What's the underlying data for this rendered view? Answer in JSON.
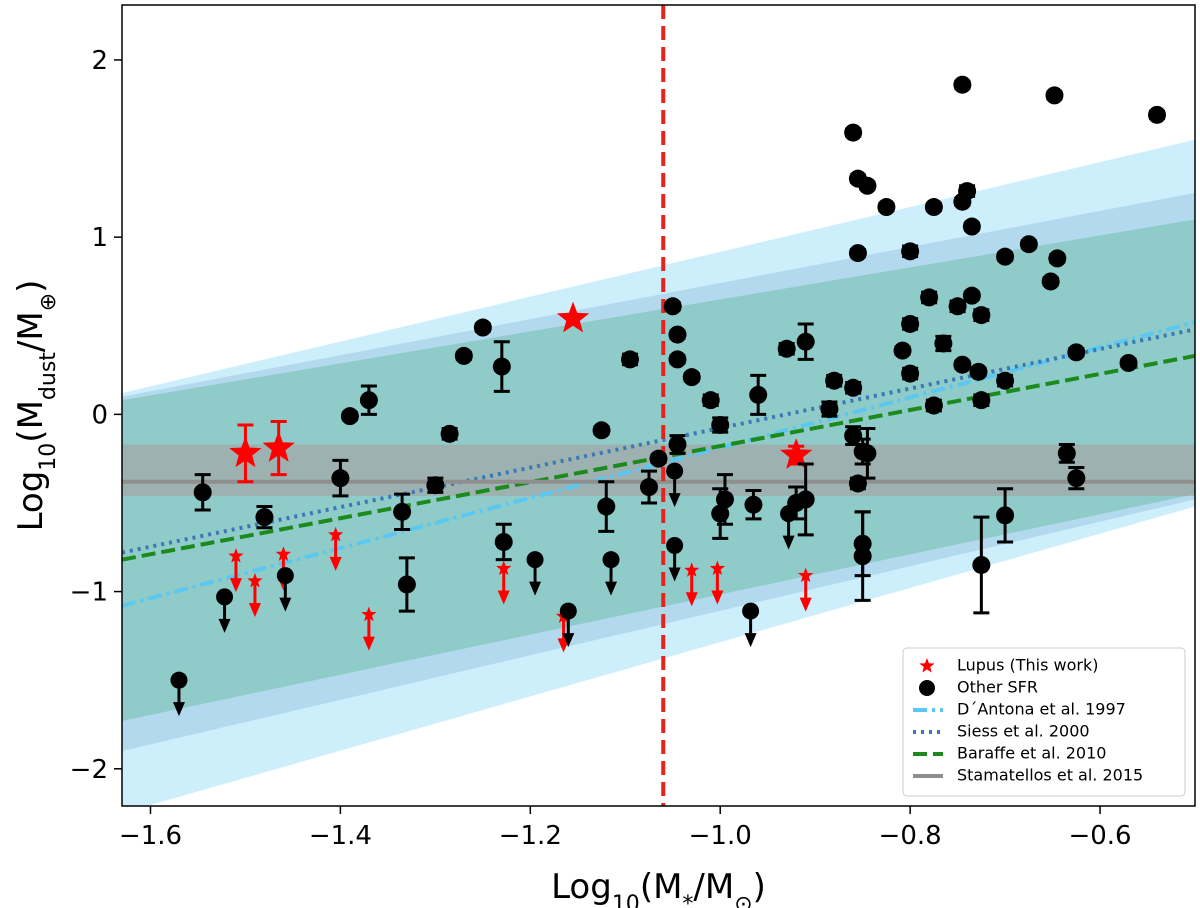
{
  "chart_data": {
    "type": "scatter",
    "xlim": [
      -1.63,
      -0.5
    ],
    "ylim": [
      -2.21,
      2.31
    ],
    "xticks": [
      {
        "value": -1.6,
        "label": "−1.6"
      },
      {
        "value": -1.4,
        "label": "−1.4"
      },
      {
        "value": -1.2,
        "label": "−1.2"
      },
      {
        "value": -1.0,
        "label": "−1.0"
      },
      {
        "value": -0.8,
        "label": "−0.8"
      },
      {
        "value": -0.6,
        "label": "−0.6"
      }
    ],
    "yticks": [
      {
        "value": -2,
        "label": "−2"
      },
      {
        "value": -1,
        "label": "−1"
      },
      0,
      1,
      2
    ],
    "xlabel": [
      {
        "text": "Log"
      },
      {
        "text": "10",
        "sub": true
      },
      {
        "text": "(M"
      },
      {
        "text": "*",
        "sub": true
      },
      {
        "text": "/M"
      },
      {
        "text": "⊙",
        "sub": true
      },
      {
        "text": ")"
      }
    ],
    "ylabel": [
      {
        "text": "Log"
      },
      {
        "text": "10",
        "sub": true
      },
      {
        "text": "(M"
      },
      {
        "text": "dust",
        "sub": true
      },
      {
        "text": "/M"
      },
      {
        "text": "⊕",
        "sub": true
      },
      {
        "text": ")"
      }
    ],
    "legend": "lower right",
    "vline": {
      "value": -1.06,
      "color": "#e8221c"
    },
    "bands": [
      {
        "color": "#cdeffb",
        "opacity": 1,
        "x": [
          -1.63,
          -0.5
        ],
        "lower": [
          -2.25,
          -0.52
        ],
        "upper": [
          0.12,
          1.55
        ]
      },
      {
        "color": "#b3d9ee",
        "opacity": 1,
        "x": [
          -1.63,
          -0.5
        ],
        "lower": [
          -1.9,
          -0.48
        ],
        "upper": [
          0.1,
          1.25
        ]
      },
      {
        "color": "#8fcbc8",
        "opacity": 1,
        "x": [
          -1.63,
          -0.5
        ],
        "lower": [
          -1.73,
          -0.45
        ],
        "upper": [
          0.08,
          1.1
        ]
      },
      {
        "color": "#a3a3a3",
        "opacity": 0.65,
        "x": [
          -1.63,
          -0.5
        ],
        "lower": [
          -0.46,
          -0.46
        ],
        "upper": [
          -0.17,
          -0.17
        ]
      }
    ],
    "series": [
      {
        "name": "Lupus (This work)",
        "color": "#ff0000",
        "marker": "star",
        "x": [
          -1.5,
          -1.465,
          -1.155,
          -0.92,
          -1.51,
          -1.49,
          -1.46,
          -1.405,
          -1.37,
          -1.228,
          -1.165,
          -1.03,
          -1.003,
          -0.91
        ],
        "values": [
          -0.22,
          -0.19,
          0.54,
          -0.23,
          -0.8,
          -0.94,
          -0.79,
          -0.68,
          -1.13,
          -0.87,
          -1.14,
          -0.88,
          -0.87,
          -0.91
        ],
        "errors": [
          0.16,
          0.15,
          null,
          0.05,
          null,
          null,
          null,
          null,
          null,
          null,
          null,
          null,
          null,
          null
        ],
        "upper_limit": [
          false,
          false,
          false,
          false,
          true,
          true,
          true,
          true,
          true,
          true,
          true,
          true,
          true,
          true
        ]
      },
      {
        "name": "Other SFR",
        "color": "#000000",
        "marker": "circle",
        "x": [
          -1.545,
          -1.48,
          -1.39,
          -1.37,
          -1.4,
          -1.335,
          -1.33,
          -1.3,
          -1.285,
          -1.27,
          -1.25,
          -1.23,
          -1.228,
          -1.125,
          -1.12,
          -1.095,
          -1.075,
          -1.065,
          -1.05,
          -1.045,
          -1.045,
          -1.045,
          -1.03,
          -1.01,
          -1.0,
          -1.0,
          -0.995,
          -0.965,
          -0.96,
          -0.93,
          -0.91,
          -0.92,
          -0.91,
          -0.88,
          -0.885,
          -0.86,
          -0.86,
          -0.86,
          -0.855,
          -0.855,
          -0.855,
          -0.85,
          -0.845,
          -0.845,
          -0.85,
          -0.85,
          -0.825,
          -0.808,
          -0.8,
          -0.8,
          -0.8,
          -0.78,
          -0.775,
          -0.775,
          -0.765,
          -0.75,
          -0.745,
          -0.745,
          -0.745,
          -0.74,
          -0.735,
          -0.735,
          -0.728,
          -0.725,
          -0.725,
          -0.725,
          -0.7,
          -0.7,
          -0.7,
          -0.675,
          -0.652,
          -0.648,
          -0.645,
          -0.635,
          -0.625,
          -0.625,
          -0.57,
          -0.54,
          -1.57,
          -1.522,
          -1.458,
          -1.195,
          -1.115,
          -1.16,
          -1.048,
          -1.048,
          -0.968,
          -0.928
        ],
        "values": [
          -0.44,
          -0.58,
          -0.01,
          0.08,
          -0.36,
          -0.55,
          -0.96,
          -0.4,
          -0.11,
          0.33,
          0.49,
          0.27,
          -0.72,
          -0.09,
          -0.52,
          0.31,
          -0.41,
          -0.25,
          0.61,
          0.45,
          0.31,
          -0.17,
          0.21,
          0.08,
          -0.06,
          -0.56,
          -0.48,
          -0.51,
          0.11,
          0.37,
          0.41,
          -0.5,
          -0.48,
          0.19,
          0.03,
          1.59,
          0.15,
          -0.12,
          1.33,
          0.91,
          -0.39,
          -0.21,
          1.29,
          -0.22,
          -0.73,
          -0.8,
          1.17,
          0.36,
          0.51,
          0.23,
          0.92,
          0.66,
          1.17,
          0.05,
          0.4,
          0.61,
          1.86,
          1.2,
          0.28,
          1.26,
          0.67,
          1.06,
          0.24,
          0.56,
          0.08,
          -0.85,
          0.89,
          0.19,
          -0.57,
          0.96,
          0.75,
          1.8,
          0.88,
          -0.22,
          -0.36,
          0.35,
          0.29,
          1.69,
          -1.5,
          -1.03,
          -0.91,
          -0.82,
          -0.82,
          -1.11,
          -0.74,
          -0.32,
          -1.11,
          -0.56
        ],
        "errors": [
          0.1,
          0.06,
          0.02,
          0.08,
          0.1,
          0.1,
          0.15,
          0.04,
          0.03,
          0.02,
          0.02,
          0.14,
          0.1,
          0.02,
          0.14,
          0.03,
          0.09,
          0.02,
          0.02,
          0.02,
          0.02,
          0.05,
          0.02,
          0.03,
          0.04,
          0.14,
          0.14,
          0.08,
          0.11,
          0.03,
          0.1,
          0.09,
          0.2,
          0.03,
          0.04,
          0.02,
          0.03,
          0.05,
          0.02,
          0.02,
          0.03,
          0.07,
          0.02,
          0.14,
          0.18,
          0.25,
          0.02,
          0.02,
          0.03,
          0.03,
          0.03,
          0.03,
          0.02,
          0.03,
          0.04,
          0.03,
          0.02,
          0.02,
          0.02,
          0.03,
          0.02,
          0.02,
          0.02,
          0.03,
          0.03,
          0.27,
          0.02,
          0.03,
          0.15,
          0.02,
          0.02,
          0.02,
          0.02,
          0.05,
          0.06,
          0.02,
          0.02,
          0.02,
          null,
          null,
          null,
          null,
          null,
          null,
          null,
          null,
          null,
          null
        ],
        "upper_limit": [
          false,
          false,
          false,
          false,
          false,
          false,
          false,
          false,
          false,
          false,
          false,
          false,
          false,
          false,
          false,
          false,
          false,
          false,
          false,
          false,
          false,
          false,
          false,
          false,
          false,
          false,
          false,
          false,
          false,
          false,
          false,
          false,
          false,
          false,
          false,
          false,
          false,
          false,
          false,
          false,
          false,
          false,
          false,
          false,
          false,
          false,
          false,
          false,
          false,
          false,
          false,
          false,
          false,
          false,
          false,
          false,
          false,
          false,
          false,
          false,
          false,
          false,
          false,
          false,
          false,
          false,
          false,
          false,
          false,
          false,
          false,
          false,
          false,
          false,
          false,
          false,
          false,
          false,
          true,
          true,
          true,
          true,
          true,
          true,
          true,
          true,
          true,
          true
        ]
      }
    ],
    "lines": [
      {
        "name": "D´Antona et al. 1997",
        "color": "#5ac8f0",
        "style": "dashdot",
        "x": [
          -1.63,
          -0.5
        ],
        "values": [
          -1.08,
          0.52
        ]
      },
      {
        "name": "Siess et al. 2000",
        "color": "#3b78b5",
        "style": "dotted",
        "x": [
          -1.63,
          -0.5
        ],
        "values": [
          -0.78,
          0.48
        ]
      },
      {
        "name": "Baraffe et al. 2010",
        "color": "#1c8a1c",
        "style": "dashed",
        "x": [
          -1.63,
          -0.5
        ],
        "values": [
          -0.82,
          0.33
        ]
      },
      {
        "name": "Stamatellos et al. 2015",
        "color": "#8f8f8f",
        "style": "solid",
        "x": [
          -1.63,
          -0.5
        ],
        "values": [
          -0.38,
          -0.38
        ]
      }
    ]
  }
}
